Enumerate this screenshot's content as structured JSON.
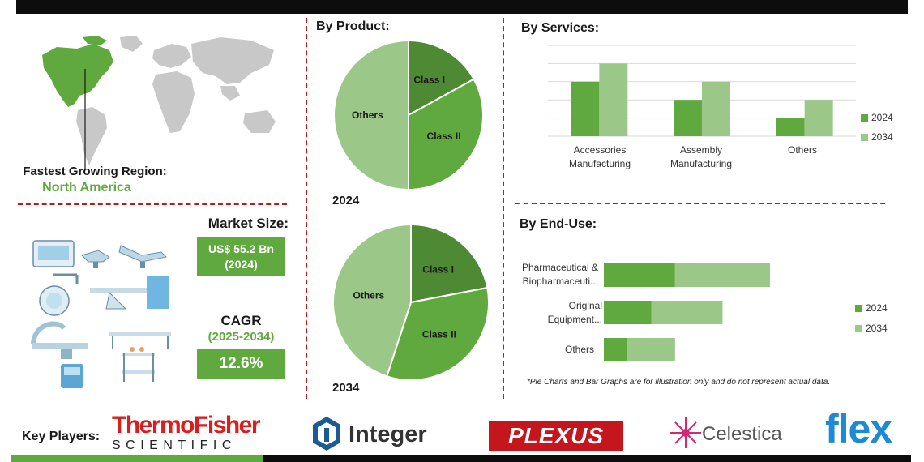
{
  "colors": {
    "dark_green": "#5fa93e",
    "light_green": "#9bc788",
    "darker_green": "#4d8a33",
    "dash_red": "#b01e1e",
    "map_gray": "#c8c8c8"
  },
  "region": {
    "label": "Fastest Growing Region:",
    "value": "North America"
  },
  "market": {
    "size_label": "Market Size:",
    "size_value": "US$ 55.2 Bn",
    "size_year": "(2024)",
    "cagr_label": "CAGR",
    "cagr_period": "(2025-2034)",
    "cagr_value": "12.6%"
  },
  "product": {
    "title": "By Product:"
  },
  "services": {
    "title": "By Services:"
  },
  "enduse": {
    "title": "By End-Use:",
    "note": "*Pie Charts and Bar Graphs are for illustration only and do not represent actual data."
  },
  "key_players": {
    "label": "Key Players:",
    "logos": [
      "ThermoFisher",
      "SCIENTIFIC",
      "Integer",
      "PLEXUS",
      "Celestica",
      "flex"
    ]
  },
  "chart_data": [
    {
      "type": "pie",
      "title": "2024",
      "slices": [
        {
          "label": "Class I",
          "value": 17
        },
        {
          "label": "Class II",
          "value": 33
        },
        {
          "label": "Others",
          "value": 50
        }
      ],
      "colors": [
        "#4d8a33",
        "#5fa93e",
        "#9bc788"
      ]
    },
    {
      "type": "pie",
      "title": "2034",
      "slices": [
        {
          "label": "Class I",
          "value": 22
        },
        {
          "label": "Class II",
          "value": 33
        },
        {
          "label": "Others",
          "value": 45
        }
      ],
      "colors": [
        "#4d8a33",
        "#5fa93e",
        "#9bc788"
      ]
    },
    {
      "type": "bar",
      "categories": [
        "Accessories Manufacturing",
        "Assembly Manufacturing",
        "Others"
      ],
      "series": [
        {
          "name": "2024",
          "values": [
            3,
            2,
            1
          ]
        },
        {
          "name": "2034",
          "values": [
            4,
            3,
            2
          ]
        }
      ],
      "ylim": [
        0,
        5
      ],
      "grid": true,
      "legend": "right"
    },
    {
      "type": "bar",
      "orientation": "horizontal",
      "stacked": true,
      "categories": [
        "Pharmaceutical & Biopharmaceuti...",
        "Original Equipment...",
        "Others"
      ],
      "series": [
        {
          "name": "2024",
          "values": [
            1.5,
            1,
            0.5
          ]
        },
        {
          "name": "2034",
          "values": [
            2,
            1.5,
            1
          ]
        }
      ],
      "legend": "right"
    }
  ]
}
